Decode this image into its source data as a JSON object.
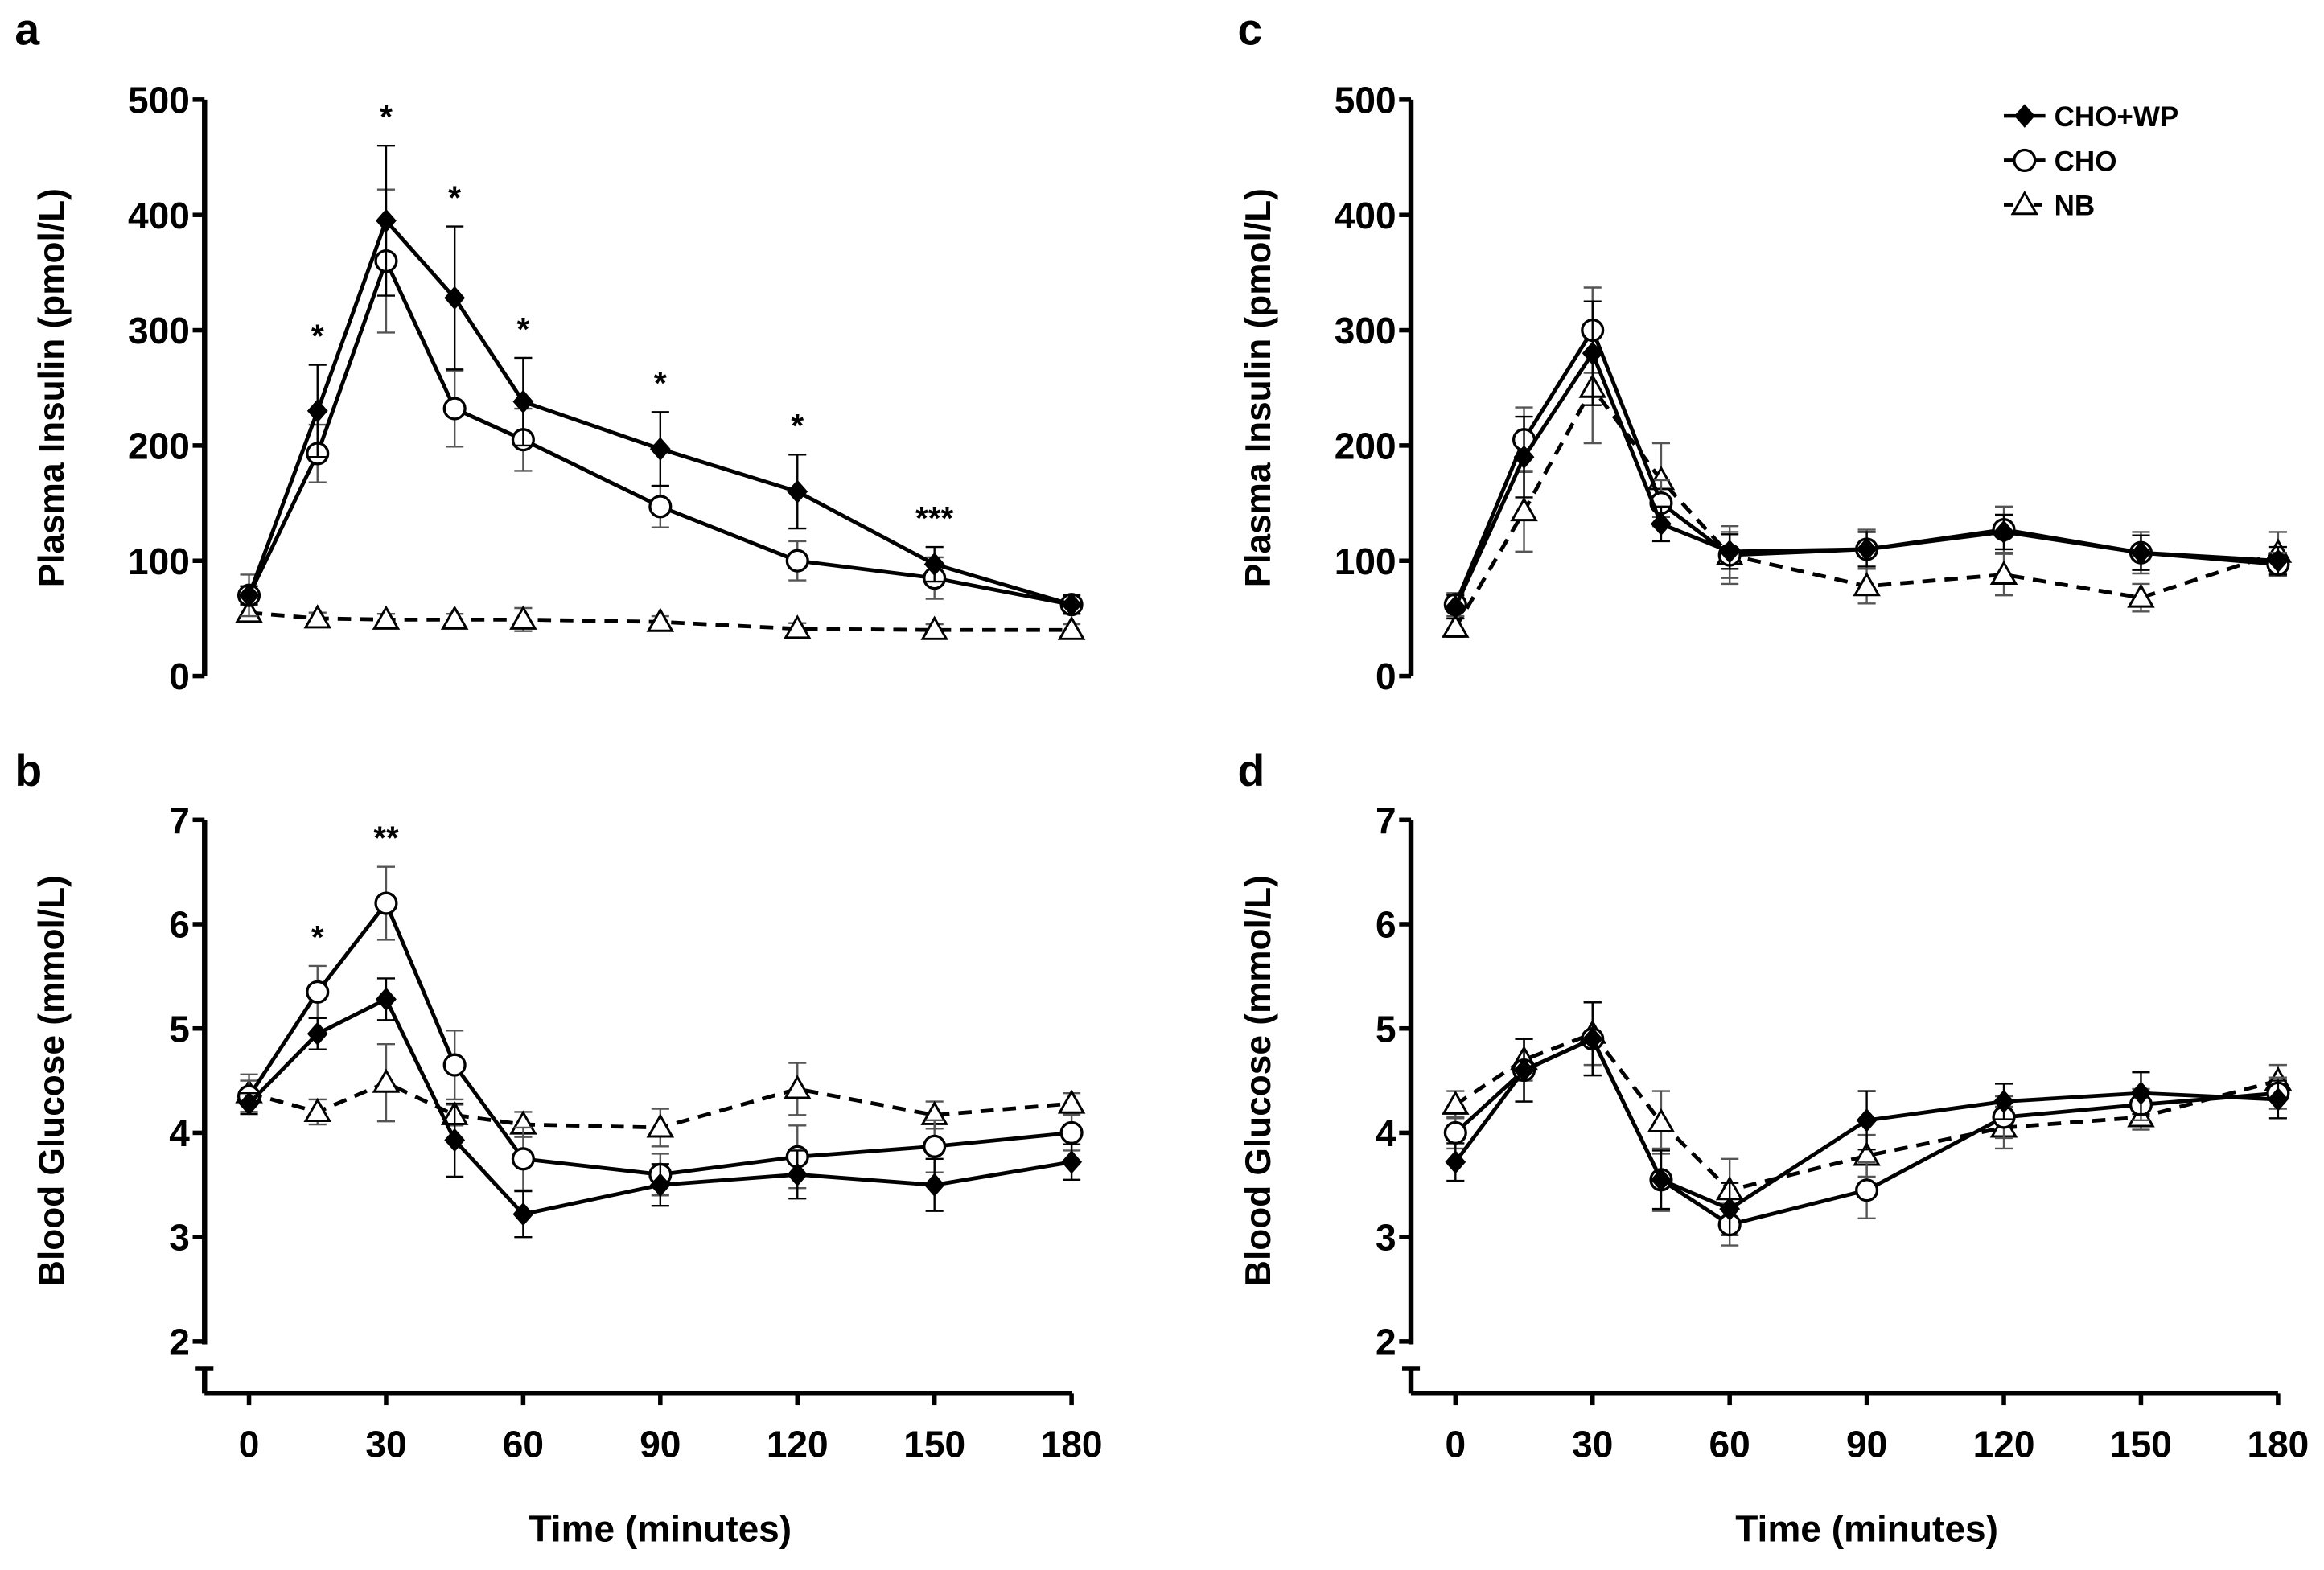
{
  "chart_data": [
    {
      "panel_label": "a",
      "type": "line",
      "ylabel": "Plasma Insulin (pmol/L)",
      "xlabel": "",
      "ylim": [
        0,
        500
      ],
      "yticks": [
        "0",
        "100",
        "200",
        "300",
        "400",
        "500"
      ],
      "xlim": [
        0,
        180
      ],
      "xticks": [
        "0",
        "30",
        "60",
        "90",
        "120",
        "150",
        "180"
      ],
      "x": [
        0,
        15,
        30,
        45,
        60,
        90,
        120,
        150,
        180
      ],
      "series": [
        {
          "name": "CHO+WP",
          "values": [
            70,
            230,
            395,
            328,
            238,
            197,
            160,
            97,
            62
          ],
          "errors": [
            8,
            40,
            65,
            62,
            38,
            32,
            32,
            15,
            8
          ]
        },
        {
          "name": "CHO",
          "values": [
            70,
            193,
            360,
            232,
            205,
            147,
            100,
            85,
            62
          ],
          "errors": [
            18,
            25,
            62,
            33,
            27,
            18,
            17,
            18,
            8
          ]
        },
        {
          "name": "NB",
          "values": [
            55,
            50,
            49,
            49,
            49,
            47,
            41,
            40,
            40
          ],
          "errors": [
            8,
            5,
            5,
            5,
            10,
            5,
            5,
            5,
            5
          ]
        }
      ],
      "annotations": [
        {
          "x": 15,
          "text": "*"
        },
        {
          "x": 30,
          "text": "*"
        },
        {
          "x": 45,
          "text": "*"
        },
        {
          "x": 60,
          "text": "*"
        },
        {
          "x": 90,
          "text": "*"
        },
        {
          "x": 120,
          "text": "*"
        },
        {
          "x": 150,
          "text": "***"
        }
      ]
    },
    {
      "panel_label": "b",
      "type": "line",
      "ylabel": "Blood Glucose (mmol/L)",
      "xlabel": "Time (minutes)",
      "ylim": [
        2,
        7
      ],
      "yticks": [
        "2",
        "3",
        "4",
        "5",
        "6",
        "7"
      ],
      "xlim": [
        0,
        180
      ],
      "xticks": [
        "0",
        "30",
        "60",
        "90",
        "120",
        "150",
        "180"
      ],
      "x": [
        0,
        15,
        30,
        45,
        60,
        90,
        120,
        150,
        180
      ],
      "series": [
        {
          "name": "CHO+WP",
          "values": [
            4.28,
            4.95,
            5.28,
            3.93,
            3.22,
            3.5,
            3.6,
            3.5,
            3.72
          ],
          "errors": [
            0.1,
            0.15,
            0.2,
            0.35,
            0.22,
            0.2,
            0.23,
            0.25,
            0.17
          ]
        },
        {
          "name": "CHO",
          "values": [
            4.35,
            5.35,
            6.2,
            4.65,
            3.75,
            3.6,
            3.77,
            3.87,
            4.0
          ],
          "errors": [
            0.15,
            0.25,
            0.35,
            0.33,
            0.3,
            0.2,
            0.3,
            0.25,
            0.17
          ]
        },
        {
          "name": "NB",
          "values": [
            4.38,
            4.2,
            4.48,
            4.17,
            4.08,
            4.05,
            4.42,
            4.17,
            4.28
          ],
          "errors": [
            0.18,
            0.12,
            0.37,
            0.1,
            0.12,
            0.18,
            0.25,
            0.13,
            0.1
          ]
        }
      ],
      "annotations": [
        {
          "x": 15,
          "text": "*"
        },
        {
          "x": 30,
          "text": "**"
        }
      ]
    },
    {
      "panel_label": "c",
      "type": "line",
      "ylabel": "Plasma Insulin (pmol/L)",
      "xlabel": "",
      "ylim": [
        0,
        500
      ],
      "yticks": [
        "0",
        "100",
        "200",
        "300",
        "400",
        "500"
      ],
      "xlim": [
        0,
        180
      ],
      "xticks": [
        "0",
        "30",
        "60",
        "90",
        "120",
        "150",
        "180"
      ],
      "x": [
        0,
        15,
        30,
        45,
        60,
        90,
        120,
        150,
        180
      ],
      "legend": {
        "placement": "top-right",
        "entries": [
          "CHO+WP",
          "CHO",
          "NB"
        ]
      },
      "series": [
        {
          "name": "CHO+WP",
          "values": [
            60,
            190,
            280,
            132,
            108,
            110,
            125,
            107,
            100
          ],
          "errors": [
            10,
            35,
            45,
            15,
            15,
            15,
            15,
            15,
            12
          ]
        },
        {
          "name": "CHO",
          "values": [
            62,
            205,
            300,
            150,
            105,
            110,
            127,
            107,
            97
          ],
          "errors": [
            10,
            28,
            37,
            20,
            20,
            17,
            20,
            18,
            10
          ]
        },
        {
          "name": "NB",
          "values": [
            42,
            143,
            250,
            170,
            105,
            78,
            88,
            68,
            107
          ],
          "errors": [
            8,
            35,
            48,
            32,
            25,
            15,
            18,
            12,
            18
          ]
        }
      ],
      "annotations": []
    },
    {
      "panel_label": "d",
      "type": "line",
      "ylabel": "Blood Glucose (mmol/L)",
      "xlabel": "Time (minutes)",
      "ylim": [
        2,
        7
      ],
      "yticks": [
        "2",
        "3",
        "4",
        "5",
        "6",
        "7"
      ],
      "xlim": [
        0,
        180
      ],
      "xticks": [
        "0",
        "30",
        "60",
        "90",
        "120",
        "150",
        "180"
      ],
      "x": [
        0,
        15,
        30,
        45,
        60,
        90,
        120,
        150,
        180
      ],
      "series": [
        {
          "name": "CHO+WP",
          "values": [
            3.72,
            4.6,
            4.9,
            3.55,
            3.27,
            4.12,
            4.3,
            4.38,
            4.32
          ],
          "errors": [
            0.18,
            0.3,
            0.35,
            0.28,
            0.25,
            0.28,
            0.17,
            0.2,
            0.18
          ]
        },
        {
          "name": "CHO",
          "values": [
            4.0,
            4.6,
            4.9,
            3.55,
            3.12,
            3.45,
            4.15,
            4.27,
            4.38
          ],
          "errors": [
            0.15,
            0.3,
            0.35,
            0.3,
            0.2,
            0.27,
            0.2,
            0.15,
            0.15
          ]
        },
        {
          "name": "NB",
          "values": [
            4.27,
            4.7,
            4.95,
            4.1,
            3.45,
            3.78,
            4.05,
            4.15,
            4.5
          ],
          "errors": [
            0.13,
            0.2,
            0.3,
            0.3,
            0.3,
            0.2,
            0.2,
            0.12,
            0.15
          ]
        }
      ],
      "annotations": []
    }
  ]
}
